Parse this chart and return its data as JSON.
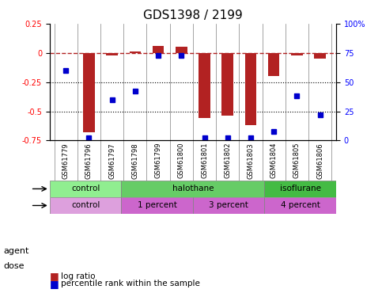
{
  "title": "GDS1398 / 2199",
  "samples": [
    "GSM61779",
    "GSM61796",
    "GSM61797",
    "GSM61798",
    "GSM61799",
    "GSM61800",
    "GSM61801",
    "GSM61802",
    "GSM61803",
    "GSM61804",
    "GSM61805",
    "GSM61806"
  ],
  "log_ratio": [
    0.0,
    -0.68,
    -0.02,
    0.01,
    0.06,
    0.05,
    -0.56,
    -0.54,
    -0.62,
    -0.2,
    -0.02,
    -0.05
  ],
  "pct_rank": [
    60,
    2,
    35,
    42,
    73,
    73,
    2,
    2,
    2,
    8,
    38,
    22
  ],
  "ylim_left": [
    -0.75,
    0.25
  ],
  "ylim_right": [
    0,
    100
  ],
  "y_ticks_left": [
    -0.75,
    -0.5,
    -0.25,
    0,
    0.25
  ],
  "y_ticks_right": [
    0,
    25,
    50,
    75,
    100
  ],
  "hline_y": 0,
  "dotted_lines": [
    -0.25,
    -0.5
  ],
  "bar_color": "#B22222",
  "dot_color": "#0000CD",
  "dashed_color": "#B22222",
  "bg_color": "#FFFFFF",
  "plot_bg": "#FFFFFF",
  "agent_groups": [
    {
      "label": "control",
      "start": 0,
      "end": 3,
      "color": "#90EE90"
    },
    {
      "label": "halothane",
      "start": 3,
      "end": 9,
      "color": "#66CC66"
    },
    {
      "label": "isoflurane",
      "start": 9,
      "end": 12,
      "color": "#44BB44"
    }
  ],
  "dose_groups": [
    {
      "label": "control",
      "start": 0,
      "end": 3,
      "color": "#DDA0DD"
    },
    {
      "label": "1 percent",
      "start": 3,
      "end": 6,
      "color": "#CC77CC"
    },
    {
      "label": "3 percent",
      "start": 6,
      "end": 9,
      "color": "#CC77CC"
    },
    {
      "label": "4 percent",
      "start": 9,
      "end": 12,
      "color": "#CC77CC"
    }
  ],
  "legend_bar_label": "log ratio",
  "legend_dot_label": "percentile rank within the sample",
  "agent_label": "agent",
  "dose_label": "dose",
  "tick_fontsize": 7,
  "label_fontsize": 8,
  "title_fontsize": 11
}
